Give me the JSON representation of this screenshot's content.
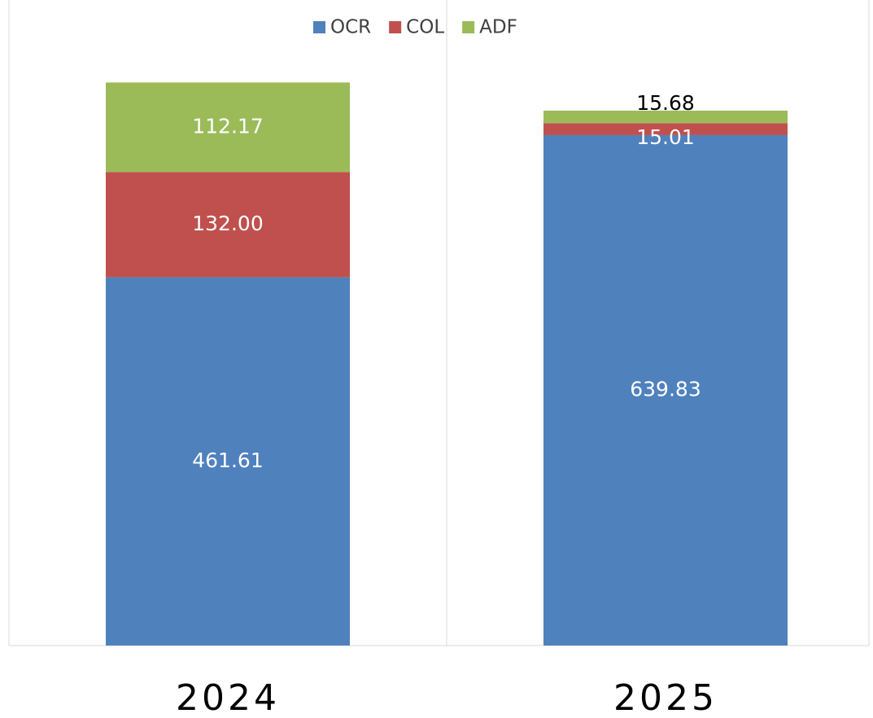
{
  "chart_data": {
    "type": "stacked_bar",
    "categories": [
      "2024",
      "2025"
    ],
    "series": [
      {
        "name": "OCR",
        "color": "#4f81bd",
        "values": [
          461.61,
          639.83
        ]
      },
      {
        "name": "COL",
        "color": "#c0504d",
        "values": [
          132.0,
          15.01
        ],
        "value_labels": [
          "132.00",
          "15.01"
        ]
      },
      {
        "name": "ADF",
        "color": "#9bbb59",
        "values": [
          112.17,
          15.68
        ]
      }
    ],
    "ylim": [
      0,
      800
    ]
  }
}
